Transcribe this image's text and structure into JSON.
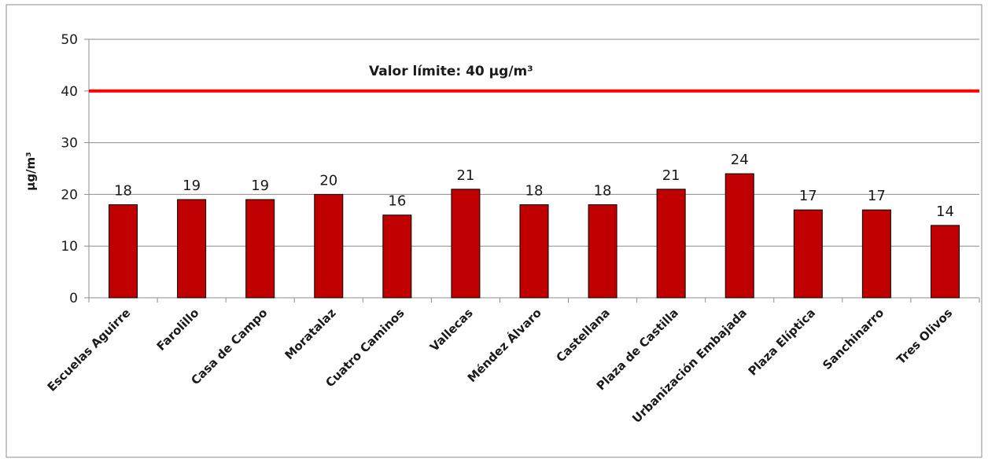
{
  "chart_data": {
    "type": "bar",
    "ylabel": "µg/m³",
    "ylim": [
      0,
      50
    ],
    "yticks": [
      "0",
      "10",
      "20",
      "30",
      "40",
      "50"
    ],
    "grid": true,
    "categories": [
      "Escuelas Aguirre",
      "Farolillo",
      "Casa de Campo",
      "Moratalaz",
      "Cuatro Caminos",
      "Vallecas",
      "Méndez Álvaro",
      "Castellana",
      "Plaza de Castilla",
      "Urbanización Embajada",
      "Plaza Elíptica",
      "Sanchinarro",
      "Tres Olivos"
    ],
    "values": [
      18,
      19,
      19,
      20,
      16,
      21,
      18,
      18,
      21,
      24,
      17,
      17,
      14
    ],
    "data_labels": [
      "18",
      "19",
      "19",
      "20",
      "16",
      "21",
      "18",
      "18",
      "21",
      "24",
      "17",
      "17",
      "14"
    ],
    "limit_line": {
      "value": 40,
      "label": "Valor límite: 40 µg/m³"
    },
    "colors": {
      "bar": "#c00000",
      "limit": "#ff0000",
      "grid": "#8c8c8c",
      "axis": "#8c8c8c"
    }
  }
}
